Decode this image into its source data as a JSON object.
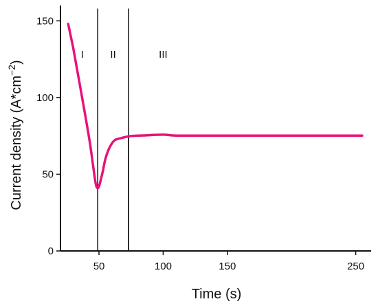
{
  "chart_data": {
    "type": "line",
    "title": "",
    "xlabel": "Time (s)",
    "ylabel_main": "Current density (A*cm",
    "ylabel_sup": "−2",
    "ylabel_close": ")",
    "xlim": [
      20,
      262
    ],
    "ylim": [
      0,
      160
    ],
    "xticks": [
      50,
      100,
      150,
      250
    ],
    "xtick_labels": [
      "50",
      "100",
      "150",
      "250"
    ],
    "yticks": [
      0,
      50,
      100,
      150
    ],
    "ytick_labels": [
      "0",
      "50",
      "100",
      "150"
    ],
    "grid": false,
    "legend": "none",
    "line_color": "#e8127a",
    "series": [
      {
        "x": [
          26,
          28,
          30,
          33,
          36,
          40,
          43,
          45,
          46,
          47,
          48,
          49,
          50,
          51,
          53,
          55,
          58,
          62,
          67,
          72,
          76,
          85,
          100,
          110,
          130,
          160,
          200,
          255
        ],
        "y": [
          148,
          140,
          132,
          118,
          104,
          85,
          70,
          58,
          52,
          46,
          42,
          41,
          42,
          45,
          52,
          60,
          67,
          72,
          73.5,
          74.5,
          75,
          75.3,
          75.8,
          75.2,
          75.2,
          75.2,
          75.2,
          75.2
        ]
      }
    ],
    "vertical_lines": [
      {
        "x": 49,
        "y_top": 158
      },
      {
        "x": 73,
        "y_top": 158
      },
      {
        "x": 73,
        "y_top": 75
      }
    ],
    "annotations": [
      {
        "text": "I",
        "x": 37,
        "y": 126
      },
      {
        "text": "II",
        "x": 61,
        "y": 126
      },
      {
        "text": "III",
        "x": 100,
        "y": 126
      }
    ]
  }
}
